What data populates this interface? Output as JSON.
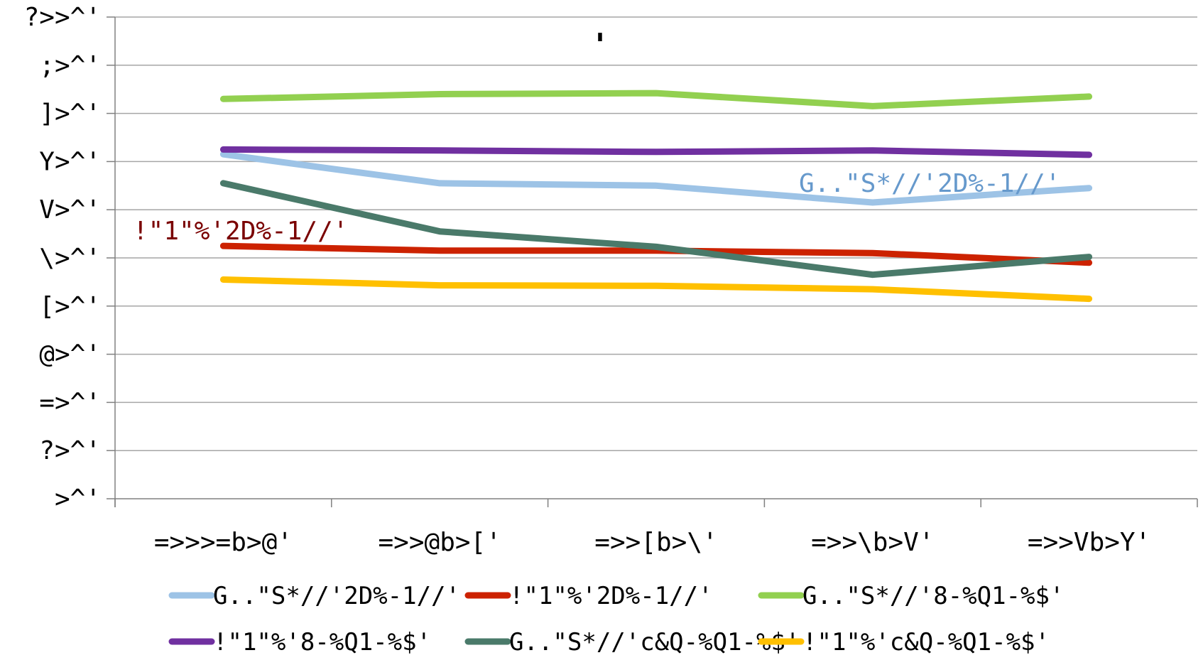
{
  "chart_data": {
    "type": "line",
    "title": "'",
    "categories": [
      "=>>>=b>@'",
      "=>>@b>['",
      "=>>[b>\\'",
      "=>>\\b>V'",
      "=>>Vb>Y'"
    ],
    "y_tick_labels": [
      ">^'",
      "?>^'",
      "=>^'",
      "@>^'",
      "[>^'",
      "\\>^'",
      "V>^'",
      "Y>^'",
      "]>^'",
      ";>^'",
      "?>>^'"
    ],
    "ylim": [
      0,
      100
    ],
    "grid": true,
    "legend_position": "bottom",
    "series": [
      {
        "name": "G..\"S*//'2D%-1//'",
        "color": "#9dc3e6",
        "values": [
          71.5,
          65.5,
          65,
          61.5,
          64.5
        ]
      },
      {
        "name": "!\"1\"%'2D%-1//'",
        "color": "#cc2200",
        "values": [
          52.5,
          51.5,
          51.5,
          51,
          49
        ]
      },
      {
        "name": "G..\"S*//'8-%Q1-%$'",
        "color": "#92d050",
        "values": [
          83,
          84,
          84.2,
          81.5,
          83.5
        ]
      },
      {
        "name": "!\"1\"%'8-%Q1-%$'",
        "color": "#7030a0",
        "values": [
          72.5,
          72.3,
          72,
          72.3,
          71.4
        ]
      },
      {
        "name": "G..\"S*//'c&Q-%Q1-%$'",
        "color": "#4a7a6a",
        "values": [
          65.5,
          55.5,
          52.3,
          46.5,
          50.2
        ]
      },
      {
        "name": "!\"1\"%'c&Q-%Q1-%$'",
        "color": "#ffc000",
        "values": [
          45.5,
          44.3,
          44.2,
          43.5,
          41.5
        ]
      }
    ],
    "annotations": [
      {
        "text": "G..\"S*//'2D%-1//'",
        "series": 0,
        "color": "#6699cc"
      },
      {
        "text": "!\"1\"%'2D%-1//'",
        "series": 1,
        "color": "#7a0000"
      }
    ]
  }
}
